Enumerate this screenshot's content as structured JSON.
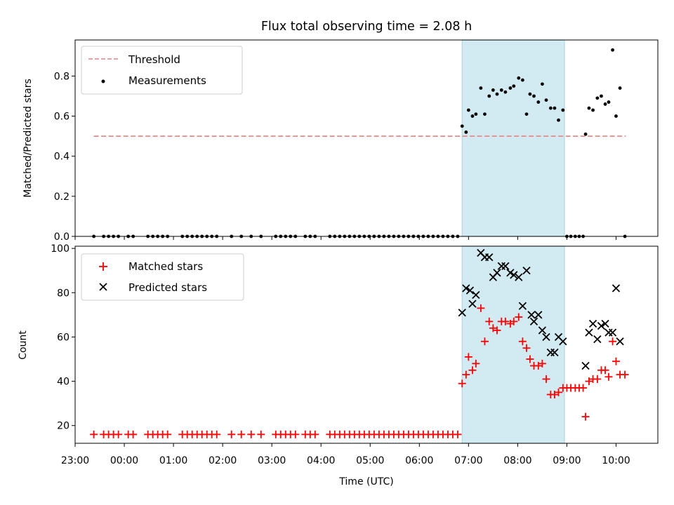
{
  "figure": {
    "title": "Flux total observing time = 2.08 h",
    "xlabel": "Time (UTC)",
    "x_ticks": [
      "23:00",
      "00:00",
      "01:00",
      "02:00",
      "03:00",
      "04:00",
      "05:00",
      "06:00",
      "07:00",
      "08:00",
      "09:00",
      "10:00"
    ]
  },
  "colors": {
    "threshold": "#f08080",
    "measurements": "#000000",
    "matched": "#ff0000",
    "predicted": "#000000",
    "span": "#add8e6"
  },
  "chart_data": [
    {
      "type": "scatter",
      "panel": "top",
      "ylabel": "Matched/Predicted stars",
      "ylim": [
        0,
        0.98
      ],
      "y_ticks": [
        "0.0",
        "0.2",
        "0.4",
        "0.6",
        "0.8"
      ],
      "x_unit": "hours since 00:00 UTC",
      "shaded_span": [
        6.87,
        8.95
      ],
      "legend": {
        "position": "top-left",
        "entries": [
          "Threshold",
          "Measurements"
        ]
      },
      "threshold": {
        "name": "Threshold",
        "y": 0.5,
        "x_range": [
          -0.62,
          10.2
        ],
        "style": "dashed"
      },
      "series": [
        {
          "name": "Measurements",
          "points": [
            [
              -0.62,
              0
            ],
            [
              -0.42,
              0
            ],
            [
              -0.32,
              0
            ],
            [
              -0.22,
              0
            ],
            [
              -0.12,
              0
            ],
            [
              0.08,
              0
            ],
            [
              0.18,
              0
            ],
            [
              0.48,
              0
            ],
            [
              0.58,
              0
            ],
            [
              0.68,
              0
            ],
            [
              0.78,
              0
            ],
            [
              0.88,
              0
            ],
            [
              1.18,
              0
            ],
            [
              1.28,
              0
            ],
            [
              1.38,
              0
            ],
            [
              1.48,
              0
            ],
            [
              1.58,
              0
            ],
            [
              1.68,
              0
            ],
            [
              1.78,
              0
            ],
            [
              1.88,
              0
            ],
            [
              2.18,
              0
            ],
            [
              2.38,
              0
            ],
            [
              2.58,
              0
            ],
            [
              2.78,
              0
            ],
            [
              3.08,
              0
            ],
            [
              3.18,
              0
            ],
            [
              3.28,
              0
            ],
            [
              3.38,
              0
            ],
            [
              3.48,
              0
            ],
            [
              3.68,
              0
            ],
            [
              3.78,
              0
            ],
            [
              3.88,
              0
            ],
            [
              4.18,
              0
            ],
            [
              4.28,
              0
            ],
            [
              4.38,
              0
            ],
            [
              4.48,
              0
            ],
            [
              4.58,
              0
            ],
            [
              4.68,
              0
            ],
            [
              4.78,
              0
            ],
            [
              4.88,
              0
            ],
            [
              4.98,
              0
            ],
            [
              5.08,
              0
            ],
            [
              5.18,
              0
            ],
            [
              5.28,
              0
            ],
            [
              5.38,
              0
            ],
            [
              5.48,
              0
            ],
            [
              5.58,
              0
            ],
            [
              5.68,
              0
            ],
            [
              5.78,
              0
            ],
            [
              5.88,
              0
            ],
            [
              5.98,
              0
            ],
            [
              6.08,
              0
            ],
            [
              6.18,
              0
            ],
            [
              6.28,
              0
            ],
            [
              6.38,
              0
            ],
            [
              6.48,
              0
            ],
            [
              6.58,
              0
            ],
            [
              6.68,
              0
            ],
            [
              6.78,
              0
            ],
            [
              6.87,
              0.55
            ],
            [
              6.95,
              0.52
            ],
            [
              7.0,
              0.63
            ],
            [
              7.08,
              0.6
            ],
            [
              7.15,
              0.61
            ],
            [
              7.25,
              0.74
            ],
            [
              7.33,
              0.61
            ],
            [
              7.42,
              0.7
            ],
            [
              7.5,
              0.73
            ],
            [
              7.58,
              0.71
            ],
            [
              7.67,
              0.73
            ],
            [
              7.75,
              0.72
            ],
            [
              7.85,
              0.74
            ],
            [
              7.92,
              0.75
            ],
            [
              8.02,
              0.79
            ],
            [
              8.1,
              0.78
            ],
            [
              8.18,
              0.61
            ],
            [
              8.25,
              0.71
            ],
            [
              8.33,
              0.7
            ],
            [
              8.42,
              0.67
            ],
            [
              8.5,
              0.76
            ],
            [
              8.58,
              0.68
            ],
            [
              8.67,
              0.64
            ],
            [
              8.75,
              0.64
            ],
            [
              8.83,
              0.58
            ],
            [
              8.92,
              0.63
            ],
            [
              9.0,
              0
            ],
            [
              9.08,
              0
            ],
            [
              9.17,
              0
            ],
            [
              9.25,
              0
            ],
            [
              9.33,
              0
            ],
            [
              9.38,
              0.51
            ],
            [
              9.45,
              0.64
            ],
            [
              9.53,
              0.63
            ],
            [
              9.62,
              0.69
            ],
            [
              9.7,
              0.7
            ],
            [
              9.78,
              0.66
            ],
            [
              9.85,
              0.67
            ],
            [
              9.93,
              0.93
            ],
            [
              10.0,
              0.6
            ],
            [
              10.08,
              0.74
            ],
            [
              10.18,
              0
            ]
          ]
        }
      ]
    },
    {
      "type": "scatter",
      "panel": "bottom",
      "ylabel": "Count",
      "ylim": [
        12,
        101
      ],
      "y_ticks": [
        "20",
        "40",
        "60",
        "80",
        "100"
      ],
      "x_unit": "hours since 00:00 UTC",
      "shaded_span": [
        6.87,
        8.95
      ],
      "legend": {
        "position": "top-left",
        "entries": [
          "Matched stars",
          "Predicted stars"
        ]
      },
      "series": [
        {
          "name": "Matched stars",
          "marker": "+",
          "points": [
            [
              -0.62,
              16
            ],
            [
              -0.42,
              16
            ],
            [
              -0.32,
              16
            ],
            [
              -0.22,
              16
            ],
            [
              -0.12,
              16
            ],
            [
              0.08,
              16
            ],
            [
              0.18,
              16
            ],
            [
              0.48,
              16
            ],
            [
              0.58,
              16
            ],
            [
              0.68,
              16
            ],
            [
              0.78,
              16
            ],
            [
              0.88,
              16
            ],
            [
              1.18,
              16
            ],
            [
              1.28,
              16
            ],
            [
              1.38,
              16
            ],
            [
              1.48,
              16
            ],
            [
              1.58,
              16
            ],
            [
              1.68,
              16
            ],
            [
              1.78,
              16
            ],
            [
              1.88,
              16
            ],
            [
              2.18,
              16
            ],
            [
              2.38,
              16
            ],
            [
              2.58,
              16
            ],
            [
              2.78,
              16
            ],
            [
              3.08,
              16
            ],
            [
              3.18,
              16
            ],
            [
              3.28,
              16
            ],
            [
              3.38,
              16
            ],
            [
              3.48,
              16
            ],
            [
              3.68,
              16
            ],
            [
              3.78,
              16
            ],
            [
              3.88,
              16
            ],
            [
              4.18,
              16
            ],
            [
              4.28,
              16
            ],
            [
              4.38,
              16
            ],
            [
              4.48,
              16
            ],
            [
              4.58,
              16
            ],
            [
              4.68,
              16
            ],
            [
              4.78,
              16
            ],
            [
              4.88,
              16
            ],
            [
              4.98,
              16
            ],
            [
              5.08,
              16
            ],
            [
              5.18,
              16
            ],
            [
              5.28,
              16
            ],
            [
              5.38,
              16
            ],
            [
              5.48,
              16
            ],
            [
              5.58,
              16
            ],
            [
              5.68,
              16
            ],
            [
              5.78,
              16
            ],
            [
              5.88,
              16
            ],
            [
              5.98,
              16
            ],
            [
              6.08,
              16
            ],
            [
              6.18,
              16
            ],
            [
              6.28,
              16
            ],
            [
              6.38,
              16
            ],
            [
              6.48,
              16
            ],
            [
              6.58,
              16
            ],
            [
              6.68,
              16
            ],
            [
              6.78,
              16
            ],
            [
              6.87,
              39
            ],
            [
              6.95,
              43
            ],
            [
              7.0,
              51
            ],
            [
              7.08,
              45
            ],
            [
              7.15,
              48
            ],
            [
              7.25,
              73
            ],
            [
              7.33,
              58
            ],
            [
              7.42,
              67
            ],
            [
              7.5,
              64
            ],
            [
              7.58,
              63
            ],
            [
              7.67,
              67
            ],
            [
              7.75,
              67
            ],
            [
              7.85,
              66
            ],
            [
              7.92,
              67
            ],
            [
              8.02,
              69
            ],
            [
              8.1,
              58
            ],
            [
              8.18,
              55
            ],
            [
              8.25,
              50
            ],
            [
              8.33,
              47
            ],
            [
              8.42,
              47
            ],
            [
              8.5,
              48
            ],
            [
              8.58,
              41
            ],
            [
              8.67,
              34
            ],
            [
              8.75,
              34
            ],
            [
              8.83,
              35
            ],
            [
              8.92,
              37
            ],
            [
              9.0,
              37
            ],
            [
              9.08,
              37
            ],
            [
              9.17,
              37
            ],
            [
              9.25,
              37
            ],
            [
              9.33,
              37
            ],
            [
              9.38,
              24
            ],
            [
              9.45,
              40
            ],
            [
              9.53,
              41
            ],
            [
              9.62,
              41
            ],
            [
              9.7,
              45
            ],
            [
              9.78,
              45
            ],
            [
              9.85,
              42
            ],
            [
              9.93,
              58
            ],
            [
              10.0,
              49
            ],
            [
              10.08,
              43
            ],
            [
              10.18,
              43
            ]
          ]
        },
        {
          "name": "Predicted stars",
          "marker": "x",
          "points": [
            [
              6.87,
              71
            ],
            [
              6.95,
              82
            ],
            [
              7.03,
              81
            ],
            [
              7.08,
              75
            ],
            [
              7.15,
              79
            ],
            [
              7.25,
              98
            ],
            [
              7.33,
              96
            ],
            [
              7.42,
              96
            ],
            [
              7.5,
              87
            ],
            [
              7.58,
              89
            ],
            [
              7.67,
              92
            ],
            [
              7.75,
              92
            ],
            [
              7.85,
              89
            ],
            [
              7.92,
              88
            ],
            [
              8.02,
              87
            ],
            [
              8.1,
              74
            ],
            [
              8.18,
              90
            ],
            [
              8.28,
              70
            ],
            [
              8.33,
              67
            ],
            [
              8.42,
              70
            ],
            [
              8.5,
              63
            ],
            [
              8.58,
              60
            ],
            [
              8.67,
              53
            ],
            [
              8.75,
              53
            ],
            [
              8.83,
              60
            ],
            [
              8.92,
              58
            ],
            [
              9.38,
              47
            ],
            [
              9.45,
              62
            ],
            [
              9.53,
              66
            ],
            [
              9.62,
              59
            ],
            [
              9.7,
              65
            ],
            [
              9.78,
              66
            ],
            [
              9.85,
              62
            ],
            [
              9.93,
              62
            ],
            [
              10.0,
              82
            ],
            [
              10.08,
              58
            ]
          ]
        }
      ]
    }
  ]
}
